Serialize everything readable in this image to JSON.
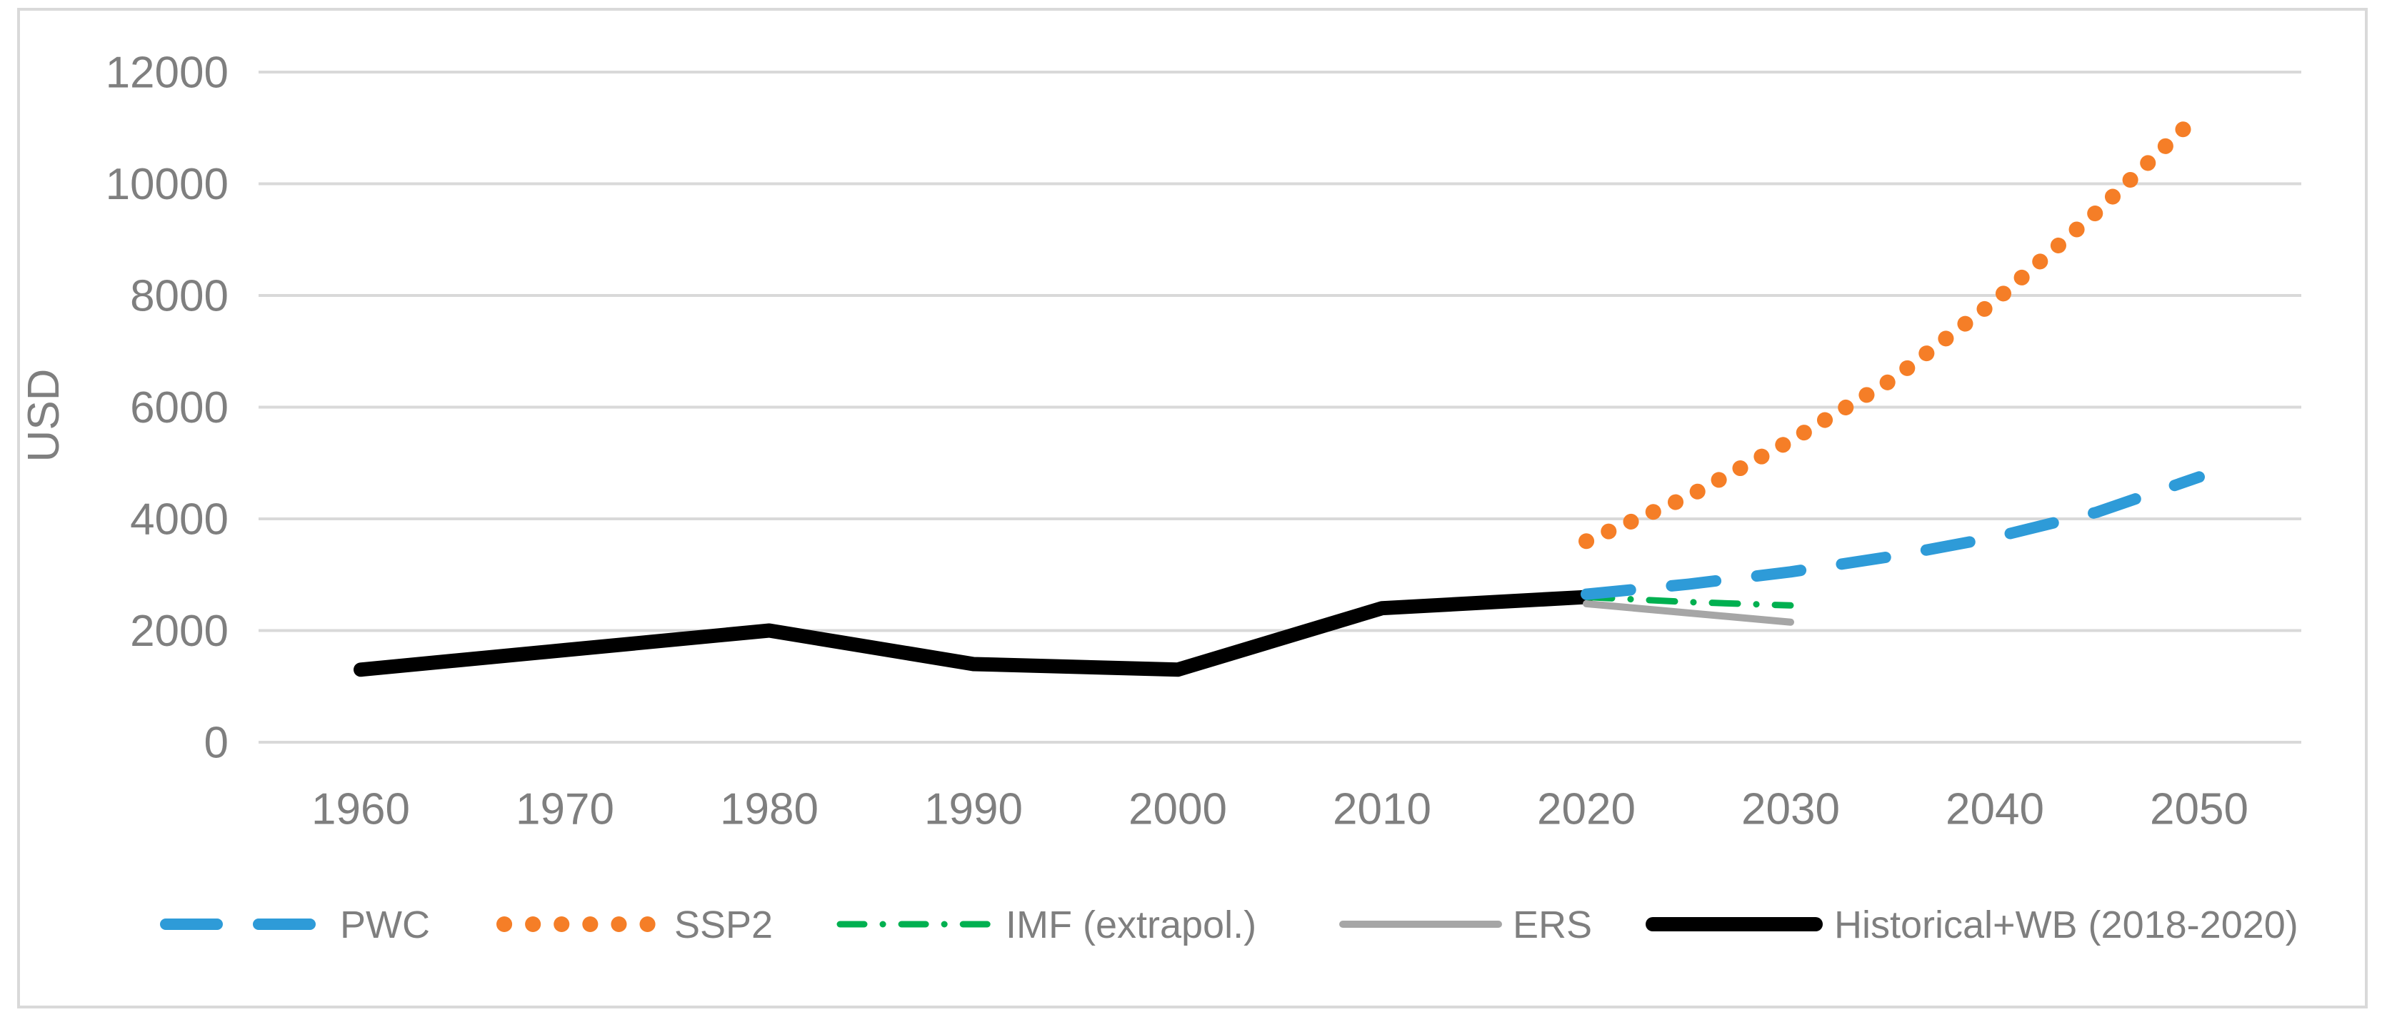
{
  "chart_data": {
    "type": "line",
    "title": "",
    "xlabel": "",
    "ylabel": "USD",
    "x_ticks": [
      1960,
      1970,
      1980,
      1990,
      2000,
      2010,
      2020,
      2030,
      2040,
      2050
    ],
    "y_ticks": [
      0,
      2000,
      4000,
      6000,
      8000,
      10000,
      12000
    ],
    "xlim": [
      1955,
      2055
    ],
    "ylim": [
      0,
      12400
    ],
    "grid": "horizontal",
    "grid_color": "#D9D9D9",
    "border_color": "#D9D9D9",
    "text_color": "#7F7F7F",
    "legend_position": "bottom",
    "series": [
      {
        "name": "PWC",
        "color": "#2E9BD8",
        "style": "dashed",
        "x": [
          2020,
          2025,
          2030,
          2035,
          2040,
          2045,
          2050
        ],
        "values": [
          2650,
          2830,
          3050,
          3330,
          3670,
          4120,
          4750
        ]
      },
      {
        "name": "SSP2",
        "color": "#F57E27",
        "style": "dotted",
        "x": [
          2020,
          2025,
          2030,
          2035,
          2040,
          2045,
          2050
        ],
        "values": [
          3600,
          4400,
          5400,
          6500,
          7900,
          9500,
          11250
        ]
      },
      {
        "name": "IMF (extrapol.)",
        "color": "#00B050",
        "style": "dashdot",
        "x": [
          2020,
          2025,
          2030
        ],
        "values": [
          2600,
          2510,
          2450
        ]
      },
      {
        "name": "ERS",
        "color": "#A6A6A6",
        "style": "solid",
        "x": [
          2020,
          2030
        ],
        "values": [
          2480,
          2150
        ]
      },
      {
        "name": "Historical+WB (2018-2020)",
        "color": "#000000",
        "style": "solid_thick",
        "x": [
          1960,
          1970,
          1980,
          1990,
          2000,
          2010,
          2020
        ],
        "values": [
          1300,
          1650,
          2000,
          1400,
          1300,
          2400,
          2600
        ]
      }
    ]
  }
}
